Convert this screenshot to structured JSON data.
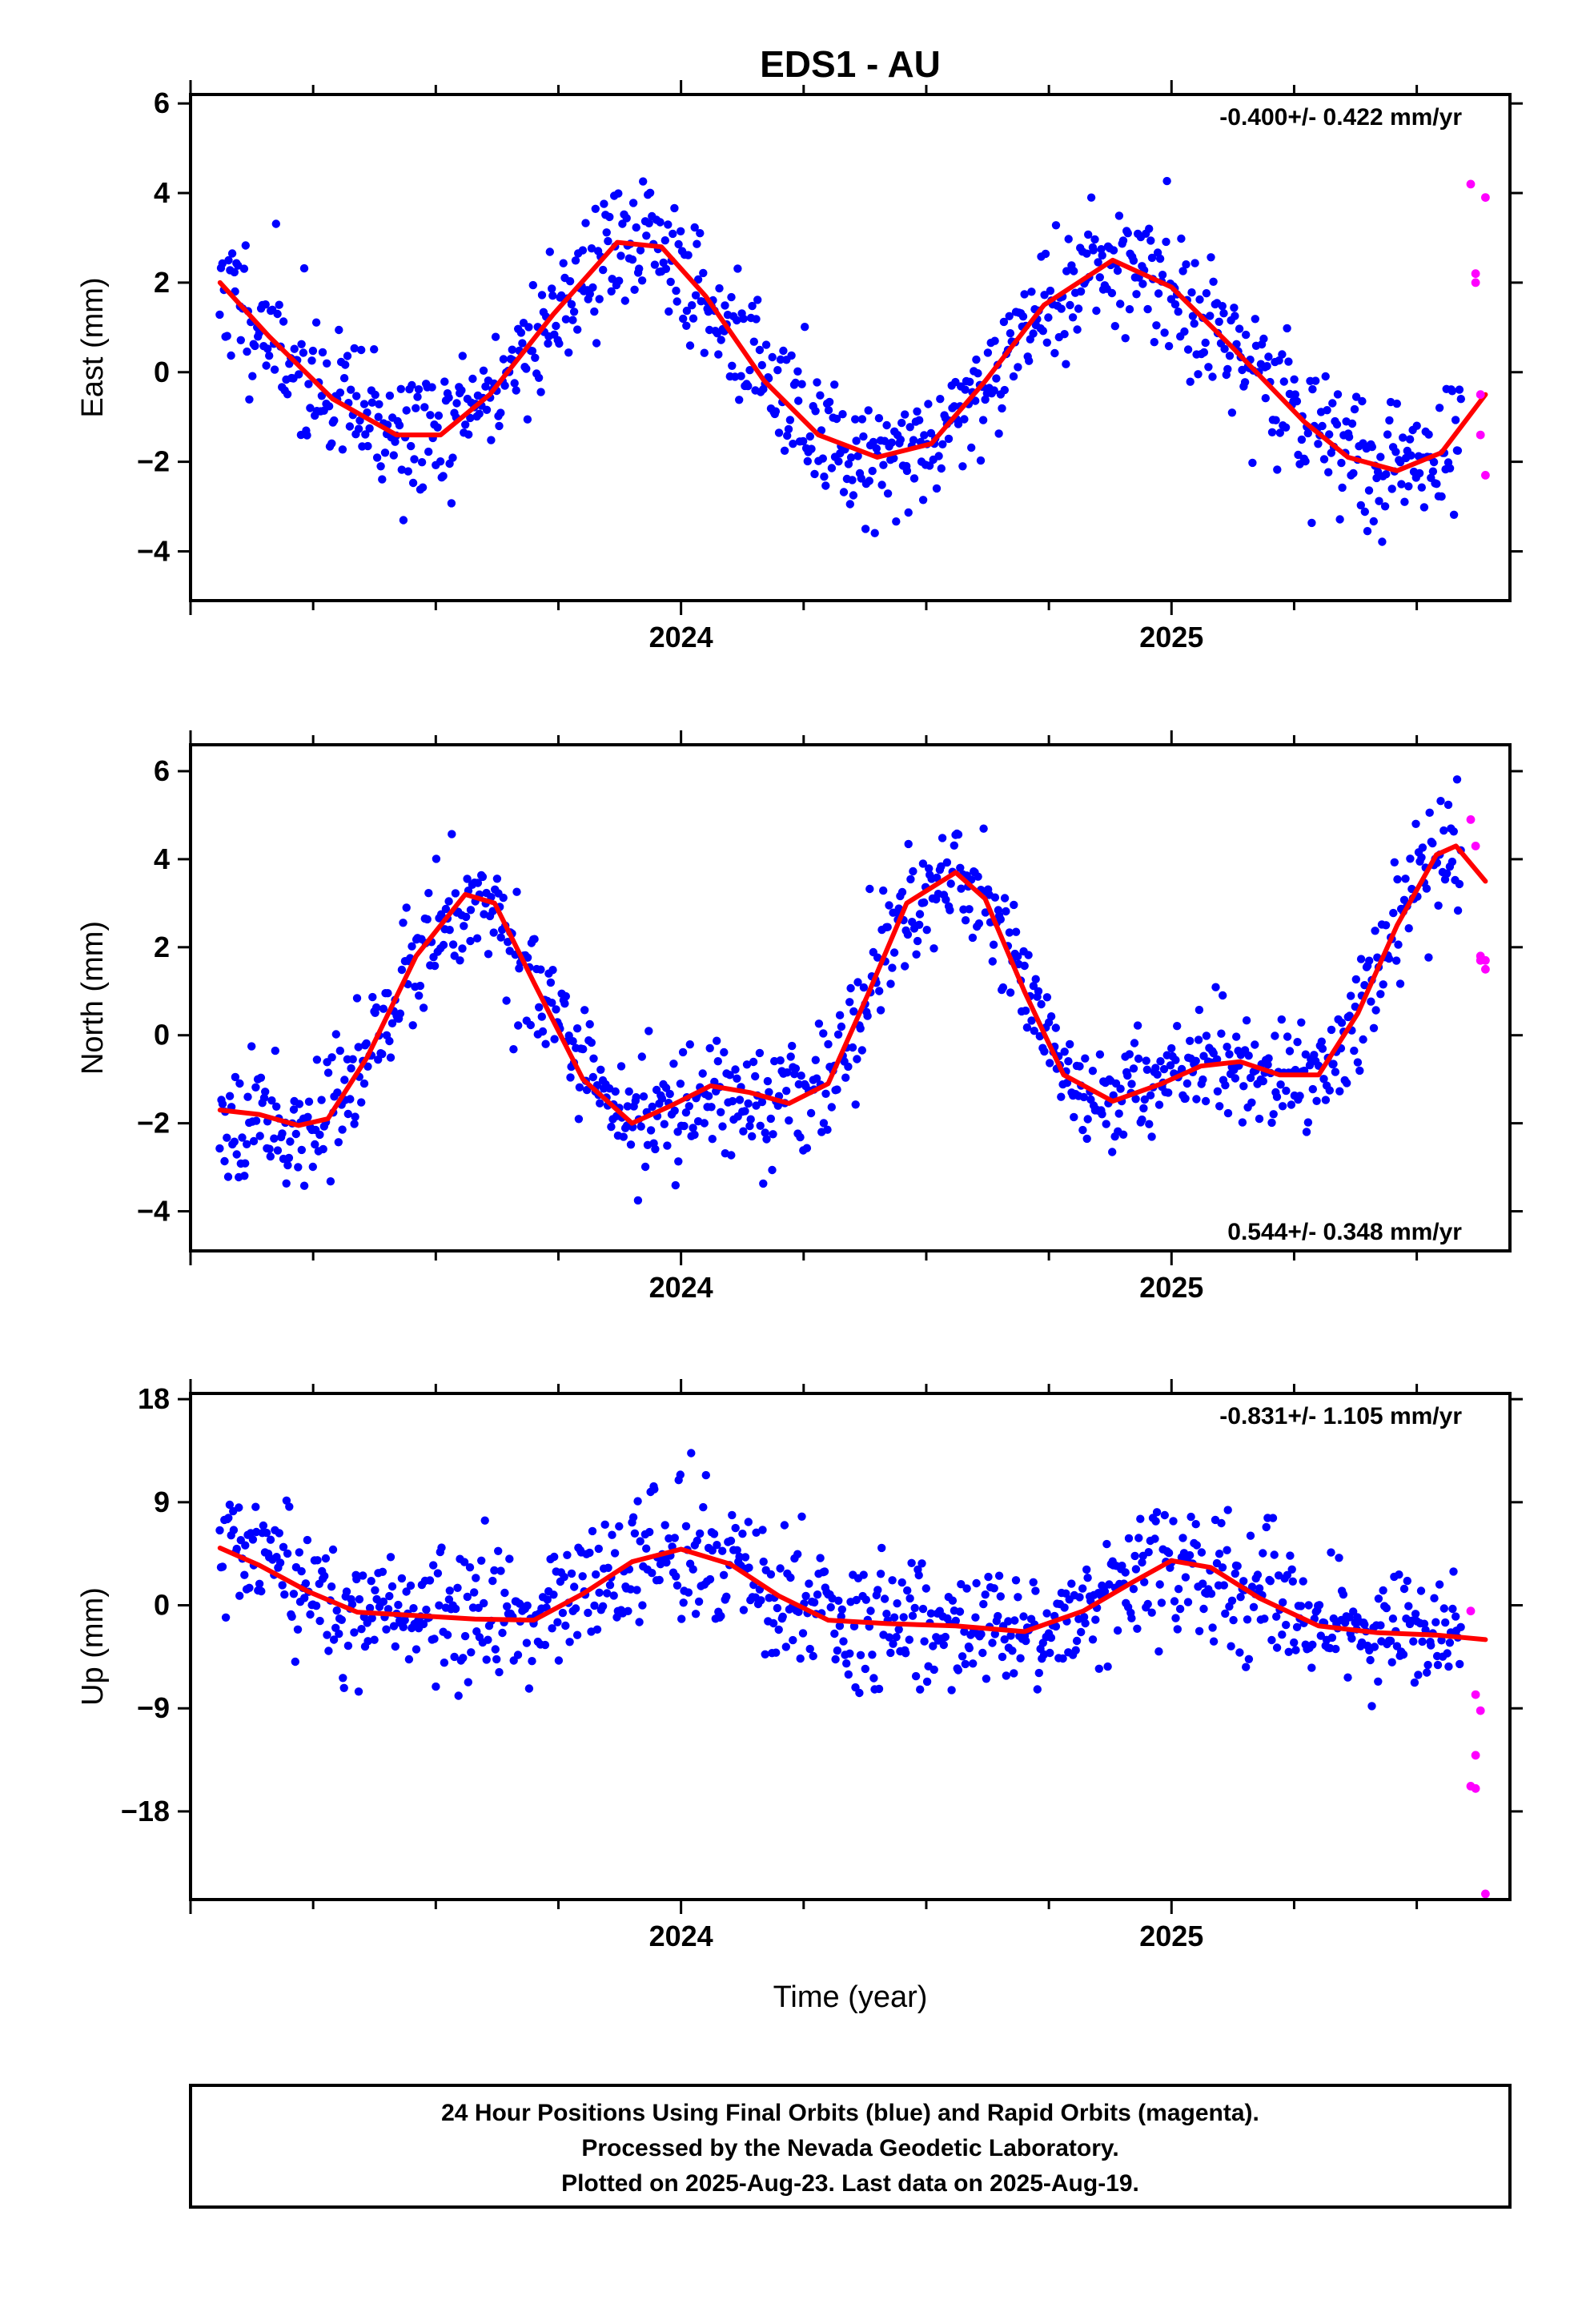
{
  "title": "EDS1 - AU",
  "footer": {
    "lines": [
      "24 Hour Positions Using Final Orbits (blue) and Rapid Orbits (magenta).",
      "Processed by the Nevada Geodetic Laboratory.",
      "Plotted on 2025-Aug-23. Last data on 2025-Aug-19."
    ]
  },
  "colors": {
    "final": "#0000ff",
    "rapid": "#ff00ff",
    "fit": "#ff0000",
    "axis": "#000000"
  },
  "chart_data": [
    {
      "type": "scatter",
      "ylabel": "East (mm)",
      "xlabel": "",
      "rate_text": "-0.400+/- 0.422 mm/yr",
      "rate_position": "top-right",
      "xlim": [
        2023.0,
        2025.69
      ],
      "ylim": [
        -5.1,
        6.2
      ],
      "yticks": [
        -4,
        -2,
        0,
        2,
        4,
        6
      ],
      "xticks": [
        2024,
        2025
      ],
      "fit": {
        "x": [
          2023.06,
          2023.16,
          2023.29,
          2023.42,
          2023.51,
          2023.61,
          2023.74,
          2023.87,
          2023.96,
          2024.05,
          2024.17,
          2024.28,
          2024.4,
          2024.51,
          2024.62,
          2024.74,
          2024.88,
          2025.0,
          2025.12,
          2025.27,
          2025.36,
          2025.46,
          2025.55,
          2025.64
        ],
        "y": [
          2.0,
          0.8,
          -0.6,
          -1.4,
          -1.4,
          -0.5,
          1.3,
          2.9,
          2.8,
          1.7,
          -0.2,
          -1.4,
          -1.9,
          -1.6,
          -0.2,
          1.5,
          2.5,
          1.9,
          0.6,
          -1.1,
          -1.9,
          -2.2,
          -1.8,
          -0.5
        ]
      },
      "rapid": {
        "x": [
          2025.61,
          2025.62,
          2025.62,
          2025.63,
          2025.63,
          2025.64,
          2025.64
        ],
        "y": [
          4.2,
          2.2,
          2.0,
          -0.5,
          -1.4,
          -2.3,
          3.9
        ]
      },
      "final_model": {
        "amp": 2.0,
        "phase": 0.69,
        "offset": 0.3,
        "trend": -0.4,
        "noise": 1.0,
        "seed": 11,
        "count": 880,
        "x0": 2023.06,
        "x1": 2025.59
      }
    },
    {
      "type": "scatter",
      "ylabel": "North (mm)",
      "xlabel": "",
      "rate_text": "0.544+/- 0.348 mm/yr",
      "rate_position": "bottom-right",
      "xlim": [
        2023.0,
        2025.69
      ],
      "ylim": [
        -4.9,
        6.6
      ],
      "yticks": [
        -4,
        -2,
        0,
        2,
        4,
        6
      ],
      "xticks": [
        2024,
        2025
      ],
      "fit": {
        "x": [
          2023.06,
          2023.14,
          2023.22,
          2023.28,
          2023.36,
          2023.46,
          2023.56,
          2023.62,
          2023.7,
          2023.8,
          2023.9,
          2023.98,
          2024.06,
          2024.14,
          2024.22,
          2024.3,
          2024.38,
          2024.46,
          2024.56,
          2024.62,
          2024.7,
          2024.78,
          2024.88,
          2024.98,
          2025.06,
          2025.14,
          2025.22,
          2025.3,
          2025.38,
          2025.46,
          2025.54,
          2025.58,
          2025.64
        ],
        "y": [
          -1.7,
          -1.8,
          -2.05,
          -1.9,
          -0.5,
          1.8,
          3.2,
          3.0,
          1.2,
          -1.0,
          -2.0,
          -1.6,
          -1.15,
          -1.3,
          -1.55,
          -1.1,
          0.9,
          3.0,
          3.7,
          3.1,
          1.0,
          -0.9,
          -1.5,
          -1.1,
          -0.7,
          -0.6,
          -0.9,
          -0.9,
          0.5,
          2.5,
          4.1,
          4.3,
          3.5
        ]
      },
      "rapid": {
        "x": [
          2025.61,
          2025.62,
          2025.63,
          2025.63,
          2025.64,
          2025.64
        ],
        "y": [
          4.9,
          4.3,
          1.8,
          1.7,
          1.5,
          1.7
        ]
      },
      "final_model": {
        "amp": 2.2,
        "phase": 0.38,
        "offset": 0.1,
        "trend": 0.54,
        "noise": 0.9,
        "seed": 23,
        "count": 880,
        "x0": 2023.06,
        "x1": 2025.59
      }
    },
    {
      "type": "scatter",
      "ylabel": "Up (mm)",
      "xlabel": "Time (year)",
      "rate_text": "-0.831+/- 1.105 mm/yr",
      "rate_position": "top-right",
      "xlim": [
        2023.0,
        2025.69
      ],
      "ylim": [
        -25.7,
        18.5
      ],
      "yticks": [
        -18,
        -9,
        0,
        9,
        18
      ],
      "xticks": [
        2024,
        2025
      ],
      "fit": {
        "x": [
          2023.06,
          2023.14,
          2023.24,
          2023.34,
          2023.46,
          2023.58,
          2023.7,
          2023.8,
          2023.9,
          2024.0,
          2024.1,
          2024.2,
          2024.3,
          2024.42,
          2024.56,
          2024.7,
          2024.82,
          2024.92,
          2025.0,
          2025.08,
          2025.18,
          2025.3,
          2025.42,
          2025.54,
          2025.64
        ],
        "y": [
          5.0,
          3.5,
          1.2,
          -0.6,
          -0.9,
          -1.2,
          -1.3,
          1.0,
          3.8,
          4.9,
          3.6,
          0.8,
          -1.3,
          -1.6,
          -1.8,
          -2.3,
          -0.5,
          2.0,
          3.9,
          3.3,
          0.6,
          -1.8,
          -2.4,
          -2.6,
          -3.0
        ]
      },
      "rapid": {
        "x": [
          2025.61,
          2025.62,
          2025.63,
          2025.62,
          2025.61,
          2025.62,
          2025.64
        ],
        "y": [
          -0.5,
          -7.8,
          -9.2,
          -13.1,
          -15.8,
          -16.0,
          -25.2
        ]
      },
      "final_model": {
        "amp": 2.7,
        "phase": 0.95,
        "offset": 0.6,
        "trend": -0.83,
        "noise": 3.8,
        "seed": 37,
        "count": 880,
        "x0": 2023.06,
        "x1": 2025.59
      }
    }
  ]
}
